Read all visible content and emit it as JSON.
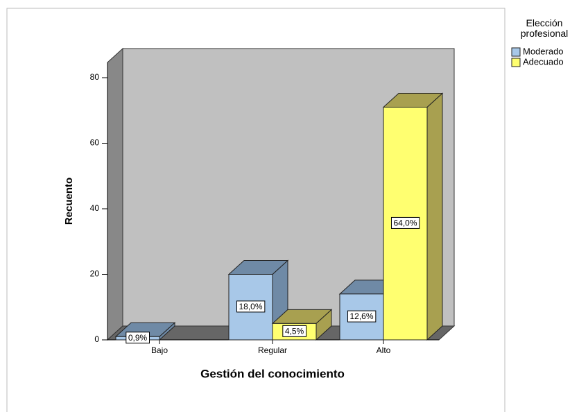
{
  "chart_data": {
    "type": "bar3d",
    "x_label": "Gestión del conocimiento",
    "y_label": "Recuento",
    "categories": [
      "Bajo",
      "Regular",
      "Alto"
    ],
    "legend_title": "Elección profesional",
    "legend": "right",
    "series": [
      {
        "name": "Moderado",
        "color": "#a8c8e8",
        "shade": "#6f8aa6",
        "values": [
          1,
          20,
          14
        ],
        "value_labels": [
          "0,9%",
          "18,0%",
          "12,6%"
        ]
      },
      {
        "name": "Adecuado",
        "color": "#ffff70",
        "shade": "#a8a050",
        "values": [
          null,
          5,
          71
        ],
        "value_labels": [
          null,
          "4,5%",
          "64,0%"
        ]
      }
    ],
    "ylim": [
      0,
      80
    ],
    "yticks": [
      0,
      20,
      40,
      60,
      80
    ]
  }
}
